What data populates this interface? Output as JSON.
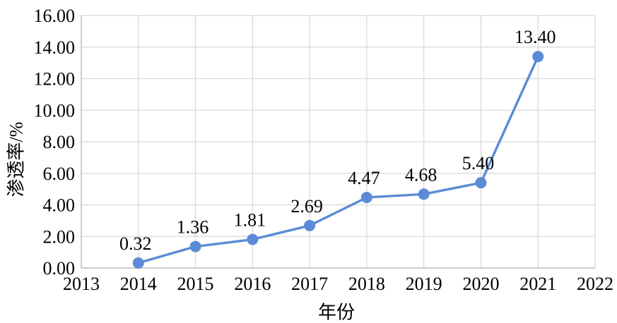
{
  "chart_data": {
    "type": "line",
    "x": [
      2014,
      2015,
      2016,
      2017,
      2018,
      2019,
      2020,
      2021
    ],
    "values": [
      0.32,
      1.36,
      1.81,
      2.69,
      4.47,
      4.68,
      5.4,
      13.4
    ],
    "data_labels": [
      "0.32",
      "1.36",
      "1.81",
      "2.69",
      "4.47",
      "4.68",
      "5.40",
      "13.40"
    ],
    "title": "",
    "xlabel": "年份",
    "ylabel": "渗透率/%",
    "xlim": [
      2013,
      2022
    ],
    "ylim": [
      0,
      16
    ],
    "x_ticks": [
      2013,
      2014,
      2015,
      2016,
      2017,
      2018,
      2019,
      2020,
      2021,
      2022
    ],
    "y_ticks": [
      0,
      2,
      4,
      6,
      8,
      10,
      12,
      14,
      16
    ],
    "y_tick_labels": [
      "0.00",
      "2.00",
      "4.00",
      "6.00",
      "8.00",
      "10.00",
      "12.00",
      "14.00",
      "16.00"
    ],
    "grid": true,
    "legend_position": "none",
    "colors": {
      "line": "#5B8BD6",
      "marker": "#5B8BD6",
      "gridline": "#D9D9D9",
      "axis_line": "#BFBFBF",
      "text": "#000000",
      "background": "#FFFFFF"
    }
  }
}
